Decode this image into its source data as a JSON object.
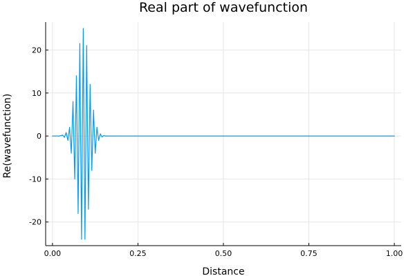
{
  "chart_data": {
    "type": "line",
    "title": "Real part of wavefunction",
    "xlabel": "Distance",
    "ylabel": "Re(wavefunction)",
    "xlim": [
      -0.02,
      1.02
    ],
    "ylim": [
      -25.5,
      26.5
    ],
    "xticks": [
      0.0,
      0.25,
      0.5,
      0.75,
      1.0
    ],
    "xtick_labels": [
      "0.00",
      "0.25",
      "0.50",
      "0.75",
      "1.00"
    ],
    "yticks": [
      -20,
      -10,
      0,
      10,
      20
    ],
    "ytick_labels": [
      "-20",
      "-10",
      "0",
      "10",
      "20"
    ],
    "grid": true,
    "legend": "none",
    "series": [
      {
        "color": "#009AF9",
        "x": [
          0.0,
          0.02,
          0.03,
          0.035,
          0.04,
          0.045,
          0.05,
          0.055,
          0.06,
          0.065,
          0.07,
          0.075,
          0.08,
          0.085,
          0.09,
          0.095,
          0.1,
          0.105,
          0.11,
          0.115,
          0.12,
          0.125,
          0.13,
          0.135,
          0.14,
          0.145,
          0.15,
          0.155,
          0.16,
          0.165,
          0.17,
          0.175,
          0.18,
          0.2,
          0.25,
          0.5,
          0.75,
          1.0
        ],
        "y": [
          0.0,
          0.0,
          0.2,
          -0.3,
          0.8,
          -1.0,
          2.0,
          -4.0,
          8.0,
          -10.0,
          14.0,
          -18.0,
          21.5,
          -24.0,
          25.0,
          -24.0,
          21.0,
          -17.0,
          12.0,
          -8.0,
          6.0,
          -4.0,
          2.0,
          -1.0,
          0.5,
          -0.2,
          0.1,
          0.0,
          0.0,
          0.0,
          0.0,
          0.0,
          0.0,
          0.0,
          0.0,
          0.0,
          0.0,
          0.0
        ]
      }
    ]
  }
}
